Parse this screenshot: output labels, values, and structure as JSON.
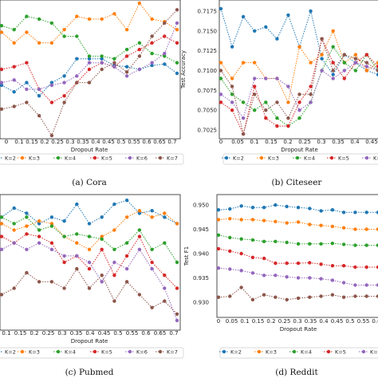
{
  "colors": {
    "K=2": "#1f77b4",
    "K=3": "#ff7f0e",
    "K=4": "#2ca02c",
    "K=5": "#d62728",
    "K=6": "#9467bd",
    "K=7": "#8c564b"
  },
  "chart_data": [
    {
      "type": "line",
      "caption": "(a)  Cora",
      "xlabel": "Dropout Rate",
      "ylabel": "",
      "grid": false,
      "legend_position": "bottom",
      "x": [
        0,
        0.05,
        0.1,
        0.15,
        0.2,
        0.25,
        0.3,
        0.35,
        0.4,
        0.45,
        0.5,
        0.55,
        0.6,
        0.65,
        0.7
      ],
      "x_ticks": [
        "0",
        "0.1",
        "0.15",
        "0.2",
        "0.25",
        "0.3",
        "0.35",
        "0.4",
        "0.45",
        "0.5",
        "0.55",
        "0.6",
        "0.65",
        "0.7"
      ],
      "y_ticks": [],
      "ylim": [
        0,
        100
      ],
      "series": [
        {
          "name": "K=2",
          "values": [
            38,
            33,
            40,
            30,
            40,
            45,
            58,
            58,
            58,
            53,
            52,
            50,
            53,
            54,
            47
          ]
        },
        {
          "name": "K=3",
          "values": [
            78,
            70,
            78,
            70,
            70,
            80,
            90,
            88,
            88,
            92,
            80,
            100,
            88,
            86,
            80
          ]
        },
        {
          "name": "K=4",
          "values": [
            83,
            80,
            90,
            88,
            85,
            75,
            75,
            60,
            60,
            58,
            65,
            70,
            62,
            60,
            55
          ]
        },
        {
          "name": "K=5",
          "values": [
            50,
            52,
            55,
            35,
            25,
            30,
            40,
            50,
            55,
            52,
            60,
            65,
            70,
            75,
            70
          ]
        },
        {
          "name": "K=6",
          "values": [
            40,
            42,
            35,
            35,
            38,
            40,
            45,
            55,
            55,
            52,
            45,
            50,
            55,
            62,
            85
          ]
        },
        {
          "name": "K=7",
          "values": [
            20,
            22,
            25,
            15,
            0,
            25,
            40,
            40,
            50,
            55,
            48,
            60,
            75,
            85,
            95
          ]
        }
      ]
    },
    {
      "type": "line",
      "caption": "(b)  Citeseer",
      "xlabel": "Dropout Rate",
      "ylabel": "Test Accuracy",
      "grid": false,
      "legend_position": "bottom",
      "x": [
        0,
        0.05,
        0.1,
        0.15,
        0.2,
        0.25,
        0.3,
        0.35,
        0.4,
        0.45,
        0.5,
        0.55,
        0.6,
        0.65,
        0.7
      ],
      "x_ticks": [
        "0",
        "0.05",
        "0.1",
        "0.15",
        "0.2",
        "0.25",
        "0.3",
        "0.35",
        "0.4",
        "0.45",
        "0.5"
      ],
      "y_ticks": [
        "0.7025",
        "0.7050",
        "0.7075",
        "0.7100",
        "0.7125",
        "0.7150",
        "0.7175"
      ],
      "ylim": [
        0.7018,
        0.7185
      ],
      "series": [
        {
          "name": "K=2",
          "values": [
            0.7178,
            0.713,
            0.7168,
            0.715,
            0.7155,
            0.714,
            0.717,
            0.713,
            0.7175,
            0.7115,
            0.7095,
            0.712,
            0.711,
            0.71,
            0.7095
          ]
        },
        {
          "name": "K=3",
          "values": [
            0.711,
            0.709,
            0.711,
            0.711,
            0.709,
            0.709,
            0.706,
            0.713,
            0.711,
            0.712,
            0.715,
            0.711,
            0.712,
            0.71,
            0.711
          ]
        },
        {
          "name": "K=4",
          "values": [
            0.709,
            0.707,
            0.706,
            0.705,
            0.706,
            0.704,
            0.703,
            0.704,
            0.706,
            0.71,
            0.713,
            0.711,
            0.71,
            0.712,
            0.71
          ]
        },
        {
          "name": "K=5",
          "values": [
            0.706,
            0.705,
            0.702,
            0.708,
            0.704,
            0.703,
            0.703,
            0.706,
            0.708,
            0.714,
            0.711,
            0.709,
            0.711,
            0.712,
            0.7105
          ]
        },
        {
          "name": "K=6",
          "values": [
            0.707,
            0.706,
            0.704,
            0.709,
            0.709,
            0.709,
            0.708,
            0.705,
            0.706,
            0.71,
            0.709,
            0.71,
            0.711,
            0.7105,
            0.71
          ]
        },
        {
          "name": "K=7",
          "values": [
            0.71,
            0.708,
            0.702,
            0.707,
            0.705,
            0.706,
            0.704,
            0.707,
            0.707,
            0.714,
            0.71,
            0.712,
            0.7115,
            0.711,
            0.71
          ]
        }
      ]
    },
    {
      "type": "line",
      "caption": "(c)  Pubmed",
      "xlabel": "Dropout Rate",
      "ylabel": "",
      "grid": false,
      "legend_position": "bottom",
      "x": [
        0,
        0.05,
        0.1,
        0.15,
        0.2,
        0.25,
        0.3,
        0.35,
        0.4,
        0.45,
        0.5,
        0.55,
        0.6,
        0.65,
        0.7
      ],
      "x_ticks": [
        "0.1",
        "0.15",
        "0.2",
        "0.25",
        "0.3",
        "0.35",
        "0.4",
        "0.45",
        "0.5",
        "0.55",
        "0.6",
        "0.65",
        "0.7"
      ],
      "y_ticks": [],
      "ylim": [
        0,
        100
      ],
      "series": [
        {
          "name": "K=2",
          "values": [
            85,
            92,
            88,
            80,
            85,
            82,
            95,
            80,
            85,
            95,
            98,
            88,
            90,
            85,
            80
          ]
        },
        {
          "name": "K=3",
          "values": [
            80,
            75,
            78,
            82,
            80,
            70,
            65,
            60,
            70,
            75,
            85,
            90,
            85,
            88,
            80
          ]
        },
        {
          "name": "K=4",
          "values": [
            85,
            80,
            85,
            75,
            78,
            70,
            72,
            70,
            68,
            60,
            65,
            75,
            60,
            65,
            50
          ]
        },
        {
          "name": "K=5",
          "values": [
            70,
            65,
            72,
            70,
            65,
            50,
            55,
            45,
            60,
            40,
            55,
            70,
            50,
            40,
            30
          ]
        },
        {
          "name": "K=6",
          "values": [
            60,
            65,
            60,
            65,
            60,
            55,
            55,
            50,
            35,
            50,
            45,
            60,
            45,
            30,
            5
          ]
        },
        {
          "name": "K=7",
          "values": [
            25,
            30,
            42,
            35,
            35,
            30,
            45,
            30,
            40,
            20,
            35,
            25,
            15,
            20,
            10
          ]
        }
      ]
    },
    {
      "type": "line",
      "caption": "(d)  Reddit",
      "xlabel": "Dropout Rate",
      "ylabel": "Test F1",
      "grid": false,
      "legend_position": "bottom",
      "x": [
        0,
        0.05,
        0.1,
        0.15,
        0.2,
        0.25,
        0.3,
        0.35,
        0.4,
        0.45,
        0.5,
        0.55,
        0.6,
        0.65,
        0.7
      ],
      "x_ticks": [
        "0",
        "0.05",
        "0.1",
        "0.15",
        "0.2",
        "0.25",
        "0.3",
        "0.35",
        "0.4",
        "0.45",
        "0.5",
        "0.55",
        "0.6"
      ],
      "y_ticks": [
        "0.930",
        "0.935",
        "0.940",
        "0.945",
        "0.950"
      ],
      "ylim": [
        0.9275,
        0.9515
      ],
      "series": [
        {
          "name": "K=2",
          "values": [
            0.949,
            0.9492,
            0.9498,
            0.9495,
            0.9495,
            0.95,
            0.9497,
            0.9495,
            0.9493,
            0.9488,
            0.949,
            0.9485,
            0.9485,
            0.9485,
            0.9485
          ]
        },
        {
          "name": "K=3",
          "values": [
            0.947,
            0.9472,
            0.947,
            0.947,
            0.9468,
            0.9466,
            0.9463,
            0.9465,
            0.946,
            0.9458,
            0.9456,
            0.9453,
            0.945,
            0.945,
            0.945
          ]
        },
        {
          "name": "K=4",
          "values": [
            0.9438,
            0.9433,
            0.943,
            0.9428,
            0.9425,
            0.9425,
            0.9423,
            0.942,
            0.942,
            0.942,
            0.9421,
            0.9419,
            0.9417,
            0.9417,
            0.9417
          ]
        },
        {
          "name": "K=5",
          "values": [
            0.941,
            0.9405,
            0.94,
            0.9392,
            0.939,
            0.938,
            0.938,
            0.938,
            0.9381,
            0.9378,
            0.9375,
            0.9375,
            0.9372,
            0.9372,
            0.9372
          ]
        },
        {
          "name": "K=6",
          "values": [
            0.937,
            0.9368,
            0.9365,
            0.936,
            0.9355,
            0.9355,
            0.9352,
            0.935,
            0.935,
            0.9348,
            0.9345,
            0.934,
            0.9335,
            0.9335,
            0.9335
          ]
        },
        {
          "name": "K=7",
          "values": [
            0.931,
            0.9312,
            0.933,
            0.9305,
            0.9315,
            0.931,
            0.9305,
            0.9308,
            0.931,
            0.9312,
            0.9315,
            0.931,
            0.9312,
            0.9312,
            0.9312
          ]
        }
      ]
    }
  ]
}
